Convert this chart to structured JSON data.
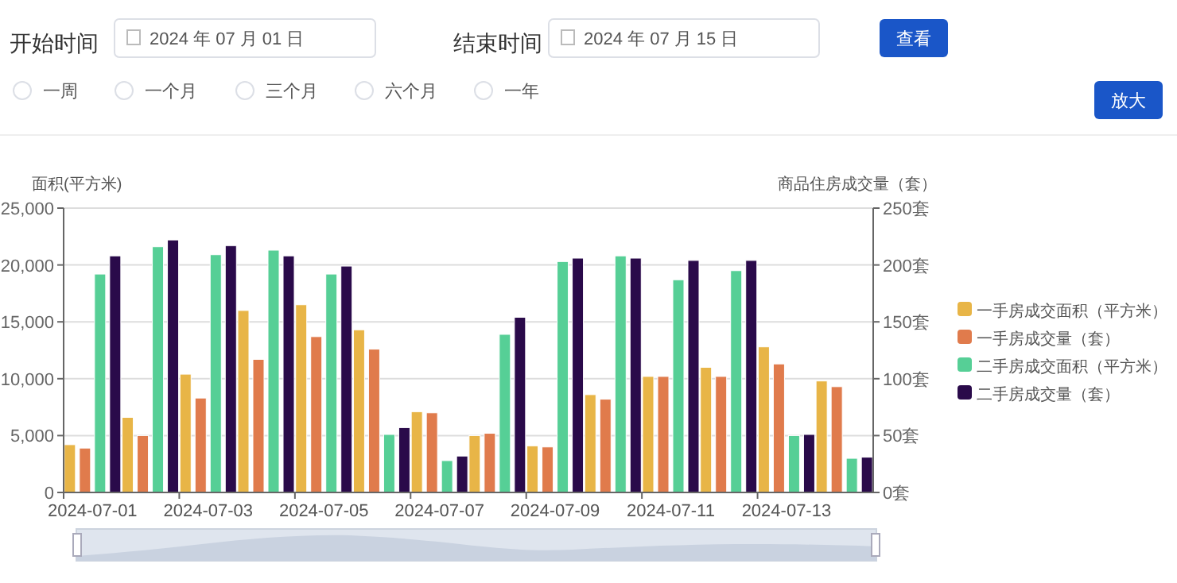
{
  "chart_data": {
    "type": "bar",
    "annotations": [
      "开始时间",
      "2024 年 07 月 01 日",
      "结束时间",
      "2024 年 07 月 15 日",
      "查看",
      "一周",
      "一个月",
      "三个月",
      "六个月",
      "一年",
      "放大"
    ],
    "ylabel": "面积(平方米)",
    "y2label": "商品住房成交量（套）",
    "categories": [
      "2024-07-01",
      null,
      "2024-07-03",
      null,
      "2024-07-05",
      null,
      "2024-07-07",
      null,
      "2024-07-09",
      null,
      "2024-07-11",
      null,
      "2024-07-13",
      null
    ],
    "ylim": [
      0,
      25000
    ],
    "yticks": [
      0,
      {
        "value": 5000,
        "label": "5,000"
      },
      {
        "value": 10000,
        "label": "10,000"
      },
      {
        "value": 15000,
        "label": "15,000"
      },
      {
        "value": 20000,
        "label": "20,000"
      },
      {
        "value": 25000,
        "label": "25,000"
      }
    ],
    "y2lim": [
      0,
      250
    ],
    "y2ticks": [
      {
        "value": 0,
        "label": "0套"
      },
      {
        "value": 50,
        "label": "50套"
      },
      {
        "value": 100,
        "label": "100套"
      },
      {
        "value": 150,
        "label": "150套"
      },
      {
        "value": 200,
        "label": "200套"
      },
      {
        "value": 250,
        "label": "250套"
      }
    ],
    "grid": "y",
    "legend": "right",
    "series": [
      {
        "name": "一手房成交面积（平方米）",
        "color": "#e8b547",
        "values": [
          4200,
          6600,
          10400,
          16000,
          16500,
          14300,
          7100,
          5000,
          4100,
          8600,
          10200,
          11000,
          12800,
          9800
        ]
      },
      {
        "name": "一手房成交量（套）",
        "color": "#e07b4c",
        "axis": "y2",
        "values": [
          39,
          50,
          83,
          117,
          137,
          126,
          70,
          52,
          40,
          82,
          102,
          102,
          113,
          93
        ]
      },
      {
        "name": "二手房成交面积（平方米）",
        "color": "#56cf96",
        "values": [
          19200,
          21600,
          20900,
          21300,
          19200,
          5100,
          2800,
          13900,
          20300,
          20800,
          18700,
          19500,
          5000,
          3000
        ]
      },
      {
        "name": "二手房成交量（套）",
        "color": "#2a0a4a",
        "axis": "y2",
        "values": [
          208,
          222,
          217,
          208,
          199,
          57,
          32,
          154,
          206,
          206,
          204,
          204,
          51,
          31
        ]
      }
    ]
  }
}
